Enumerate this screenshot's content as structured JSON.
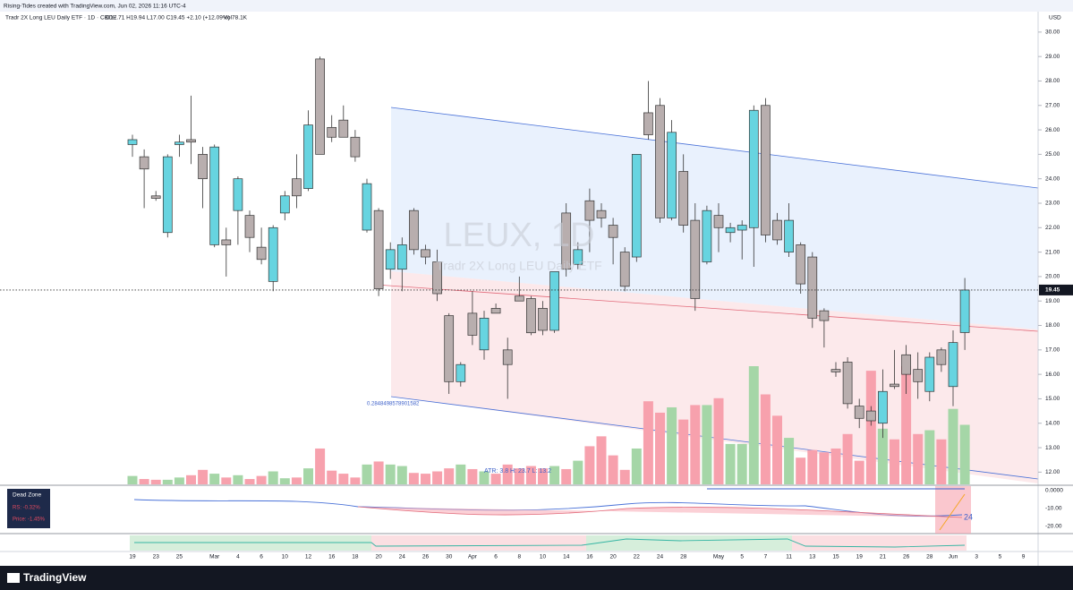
{
  "header": {
    "credit": "Rising-Tides created with TradingView.com, Jun 02, 2026 11:16 UTC-4",
    "symbol": "Tradr 2X Long LEU Daily ETF · 1D · CBOE",
    "ohlc": "O17.71 H19.94 L17.00 C19.45 +2.10 (+12.09%)",
    "volume": "Vol78.1K"
  },
  "chart_data": {
    "type": "candlestick",
    "watermark": "LEUX, 1D",
    "watermark_sub": "Tradr 2X Long LEU Daily ETF",
    "currency": "USD",
    "channel_label": "0.2848498578901582",
    "atr_label": "ATR: 3.8    H: 23.7    L: 13.2",
    "up_color": "#67d4e0",
    "down_color": "#b8aeae",
    "volume_up_color": "#a5d6a7",
    "volume_down_color": "#f7a1ad",
    "categories": [
      "19",
      null,
      "23",
      null,
      "25",
      null,
      null,
      "Mar",
      null,
      "4",
      null,
      "6",
      null,
      "10",
      null,
      "12",
      null,
      "16",
      null,
      "18",
      null,
      "20",
      null,
      "24",
      null,
      "26",
      null,
      "30",
      null,
      "Apr",
      null,
      "6",
      null,
      "8",
      null,
      "10",
      null,
      "14",
      null,
      "16",
      null,
      "20",
      null,
      "22",
      null,
      "24",
      null,
      "28",
      null,
      null,
      "May",
      null,
      "5",
      null,
      "7",
      null,
      "11",
      null,
      "13",
      null,
      "15",
      null,
      "19",
      null,
      "21",
      null,
      "26",
      null,
      "28",
      null,
      "Jun",
      null,
      "3",
      null,
      "5",
      null,
      "9"
    ],
    "open": [
      25.4,
      24.9,
      23.3,
      21.8,
      25.4,
      25.6,
      25.0,
      21.3,
      21.5,
      22.7,
      22.5,
      21.2,
      19.8,
      22.6,
      24.0,
      23.6,
      28.9,
      26.1,
      26.4,
      25.7,
      21.9,
      22.7,
      20.3,
      20.3,
      22.7,
      21.1,
      20.6,
      18.4,
      15.7,
      18.5,
      17.0,
      18.7,
      17.0,
      19.2,
      19.1,
      18.7,
      17.8,
      22.6,
      20.5,
      23.1,
      22.7,
      22.1,
      21.0,
      20.8,
      26.7,
      27.0,
      22.4,
      24.3,
      22.3,
      20.6,
      22.5,
      21.8,
      21.9,
      22.0,
      27.0,
      22.3,
      21.0,
      21.3,
      20.8,
      18.6,
      16.2,
      16.5,
      14.7,
      14.5,
      14.0,
      15.6,
      16.8,
      16.2,
      15.3,
      17.0,
      15.5,
      17.71,
      null,
      null,
      null,
      null,
      null
    ],
    "high": [
      25.8,
      25.2,
      23.5,
      25.0,
      25.8,
      27.4,
      25.3,
      25.4,
      22.0,
      24.1,
      22.7,
      22.0,
      22.1,
      23.5,
      25.0,
      26.8,
      29.0,
      26.6,
      27.0,
      26.0,
      24.0,
      22.8,
      21.4,
      21.6,
      22.8,
      21.3,
      21.1,
      18.5,
      16.5,
      19.4,
      18.6,
      18.9,
      17.5,
      20.0,
      19.2,
      19.0,
      20.2,
      23.0,
      21.4,
      23.6,
      23.0,
      22.4,
      21.2,
      25.0,
      28.0,
      27.3,
      26.4,
      25.0,
      23.0,
      22.9,
      23.0,
      22.2,
      22.3,
      27.0,
      27.3,
      22.6,
      23.0,
      21.4,
      21.0,
      18.7,
      16.5,
      16.7,
      15.0,
      14.7,
      16.2,
      17.0,
      17.2,
      16.9,
      16.9,
      17.1,
      17.8,
      19.94,
      null,
      null,
      null,
      null,
      null
    ],
    "low": [
      24.9,
      22.8,
      23.1,
      21.6,
      24.9,
      24.6,
      22.8,
      21.2,
      20.0,
      21.3,
      21.0,
      20.5,
      19.4,
      22.3,
      22.8,
      23.5,
      25.0,
      25.5,
      25.7,
      24.7,
      21.8,
      19.2,
      19.9,
      19.4,
      20.9,
      20.5,
      19.0,
      15.2,
      15.5,
      17.2,
      16.6,
      18.5,
      15.0,
      19.0,
      17.6,
      17.6,
      17.7,
      20.0,
      20.3,
      21.0,
      22.0,
      20.5,
      19.4,
      20.6,
      25.6,
      22.2,
      22.3,
      21.8,
      18.6,
      20.5,
      21.0,
      21.4,
      20.7,
      20.4,
      21.4,
      21.3,
      20.8,
      19.3,
      17.9,
      17.1,
      15.9,
      14.6,
      13.8,
      13.9,
      13.4,
      15.4,
      15.2,
      15.0,
      14.9,
      16.1,
      14.7,
      17.0,
      null,
      null,
      null,
      null,
      null
    ],
    "close": [
      25.6,
      24.4,
      23.2,
      24.9,
      25.5,
      25.5,
      24.0,
      25.3,
      21.3,
      24.0,
      21.6,
      20.7,
      22.0,
      23.3,
      23.3,
      26.2,
      25.0,
      25.7,
      25.7,
      24.9,
      23.8,
      19.5,
      21.1,
      21.3,
      21.1,
      20.8,
      19.3,
      15.7,
      16.4,
      17.6,
      18.3,
      18.5,
      16.4,
      19.0,
      17.7,
      17.8,
      20.2,
      20.3,
      21.1,
      22.3,
      22.4,
      21.6,
      19.6,
      25.0,
      25.8,
      22.4,
      25.9,
      22.1,
      19.1,
      22.7,
      22.0,
      22.0,
      22.1,
      26.8,
      21.7,
      21.5,
      22.3,
      19.7,
      18.3,
      18.2,
      16.1,
      14.8,
      14.2,
      14.1,
      15.3,
      15.5,
      16.0,
      15.7,
      16.7,
      16.4,
      17.3,
      19.45,
      null,
      null,
      null,
      null,
      null
    ],
    "volume": [
      11,
      7,
      6,
      6,
      9,
      12,
      19,
      14,
      9,
      12,
      7,
      11,
      17,
      8,
      9,
      21,
      47,
      18,
      14,
      9,
      26,
      30,
      26,
      24,
      15,
      14,
      17,
      21,
      26,
      20,
      17,
      14,
      26,
      21,
      24,
      21,
      24,
      20,
      31,
      50,
      63,
      38,
      19,
      47,
      109,
      94,
      101,
      85,
      104,
      104,
      113,
      53,
      53,
      155,
      118,
      90,
      61,
      35,
      45,
      42,
      47,
      66,
      31,
      149,
      73,
      59,
      155,
      66,
      71,
      59,
      99,
      78.1,
      null,
      null,
      null,
      null,
      null
    ],
    "ylim": [
      11.5,
      30.8
    ],
    "yticks": [
      {
        "value": 12,
        "label": "12.00"
      },
      {
        "value": 13,
        "label": "13.00"
      },
      {
        "value": 14,
        "label": "14.00"
      },
      {
        "value": 15,
        "label": "15.00"
      },
      {
        "value": 16,
        "label": "16.00"
      },
      {
        "value": 17,
        "label": "17.00"
      },
      {
        "value": 18,
        "label": "18.00"
      },
      {
        "value": 19,
        "label": "19.00"
      },
      {
        "value": 20,
        "label": "20.00"
      },
      {
        "value": 21,
        "label": "21.00"
      },
      {
        "value": 22,
        "label": "22.00"
      },
      {
        "value": 23,
        "label": "23.00"
      },
      {
        "value": 24,
        "label": "24.00"
      },
      {
        "value": 25,
        "label": "25.00"
      },
      {
        "value": 26,
        "label": "26.00"
      },
      {
        "value": 27,
        "label": "27.00"
      },
      {
        "value": 28,
        "label": "28.00"
      },
      {
        "value": 29,
        "label": "29.00"
      },
      {
        "value": 30,
        "label": "30.00"
      }
    ],
    "grid": false
  },
  "panes": {
    "dead_zone": {
      "title": "Dead Zone",
      "rs": "RS: -0.32%",
      "price": "Price: -1.45%"
    },
    "ticks": [
      "0.0000",
      "-10.00",
      "-20.00"
    ],
    "marker": "24"
  },
  "branding": "TradingView"
}
